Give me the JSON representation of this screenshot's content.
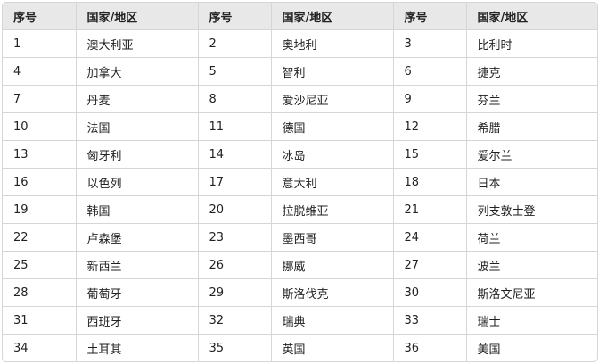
{
  "headers": [
    "序号",
    "国家/地区",
    "序号",
    "国家/地区",
    "序号",
    "国家/地区"
  ],
  "rows": [
    [
      "1",
      "澳大利亚",
      "2",
      "奥地利",
      "3",
      "比利时"
    ],
    [
      "4",
      "加拿大",
      "5",
      "智利",
      "6",
      "捷克"
    ],
    [
      "7",
      "丹麦",
      "8",
      "爱沙尼亚",
      "9",
      "芬兰"
    ],
    [
      "10",
      "法国",
      "11",
      "德国",
      "12",
      "希腊"
    ],
    [
      "13",
      "匈牙利",
      "14",
      "冰岛",
      "15",
      "爱尔兰"
    ],
    [
      "16",
      "以色列",
      "17",
      "意大利",
      "18",
      "日本"
    ],
    [
      "19",
      "韩国",
      "20",
      "拉脱维亚",
      "21",
      "列支敦士登"
    ],
    [
      "22",
      "卢森堡",
      "23",
      "墨西哥",
      "24",
      "荷兰"
    ],
    [
      "25",
      "新西兰",
      "26",
      "挪威",
      "27",
      "波兰"
    ],
    [
      "28",
      "葡萄牙",
      "29",
      "斯洛伐克",
      "30",
      "斯洛文尼亚"
    ],
    [
      "31",
      "西班牙",
      "32",
      "瑞典",
      "33",
      "瑞士"
    ],
    [
      "34",
      "土耳其",
      "35",
      "英国",
      "36",
      "美国"
    ]
  ]
}
